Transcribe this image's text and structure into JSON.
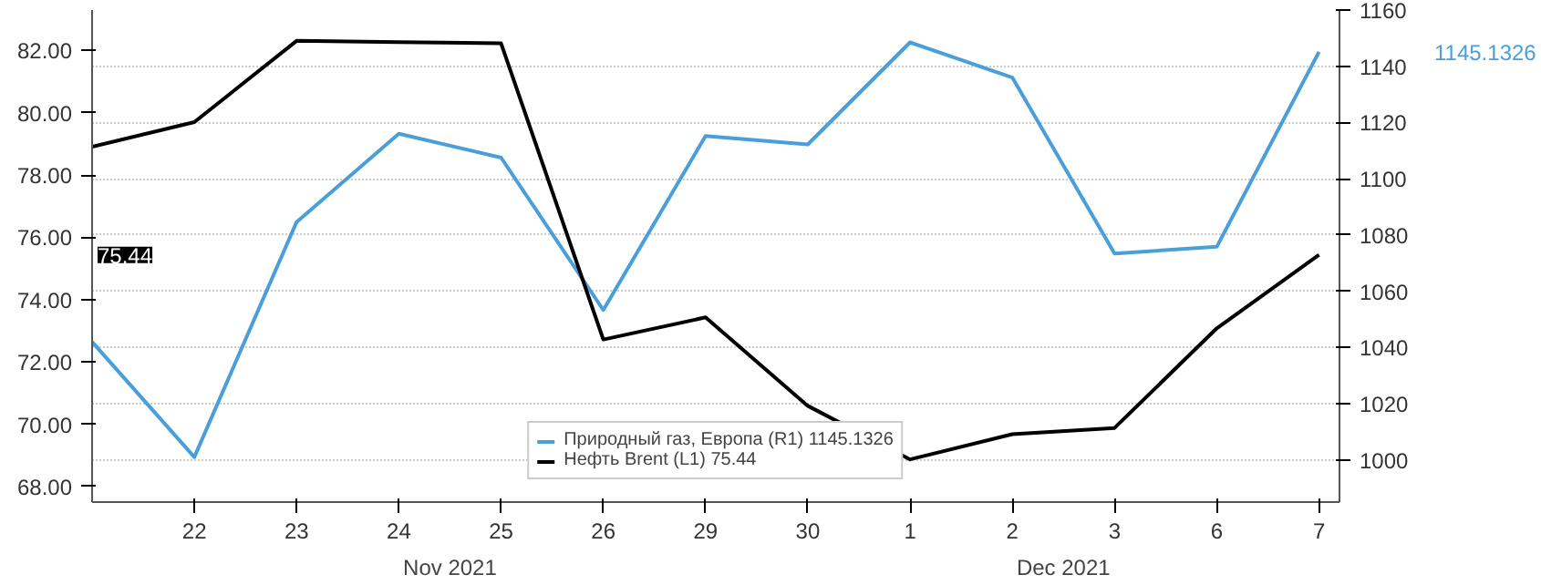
{
  "chart_data": {
    "type": "line",
    "categories": [
      null,
      "22",
      "23",
      "24",
      "25",
      "26",
      "29",
      "30",
      "1",
      "2",
      "3",
      "6",
      "7"
    ],
    "series": [
      {
        "name": "Природный газ, Европа (R1) 1145.1326",
        "color": "#4a9fdb",
        "axis": "y2",
        "values": [
          1042,
          1001,
          1084.6,
          1116,
          1107.5,
          1053.3,
          1115.2,
          1112.2,
          1148.5,
          1136,
          1073.4,
          1075.8,
          1145.1326
        ]
      },
      {
        "name": "Нефть Brent (L1) 75.44",
        "color": "#000000",
        "values": [
          78.91,
          79.7,
          82.31,
          82.27,
          82.23,
          72.72,
          73.43,
          70.59,
          68.87,
          69.68,
          69.88,
          73.08,
          75.44
        ]
      }
    ],
    "ylim": [
      67.5,
      83.3
    ],
    "yticks": [
      {
        "value": 68,
        "label": "68.00"
      },
      {
        "value": 70,
        "label": "70.00"
      },
      {
        "value": 72,
        "label": "72.00"
      },
      {
        "value": 74,
        "label": "74.00"
      },
      {
        "value": 76,
        "label": "76.00"
      },
      {
        "value": 78,
        "label": "78.00"
      },
      {
        "value": 80,
        "label": "80.00"
      },
      {
        "value": 82,
        "label": "82.00"
      }
    ],
    "y2lim": [
      985,
      1160
    ],
    "y2ticks": [
      1000,
      1020,
      1040,
      1060,
      1080,
      1100,
      1120,
      1140,
      1160
    ],
    "annotations": [
      "Nov 2021",
      "Dec 2021",
      "75.44",
      "1145.1326"
    ],
    "grid": "y2",
    "legend": "bottom",
    "marker": "none",
    "line_style": "solid"
  }
}
